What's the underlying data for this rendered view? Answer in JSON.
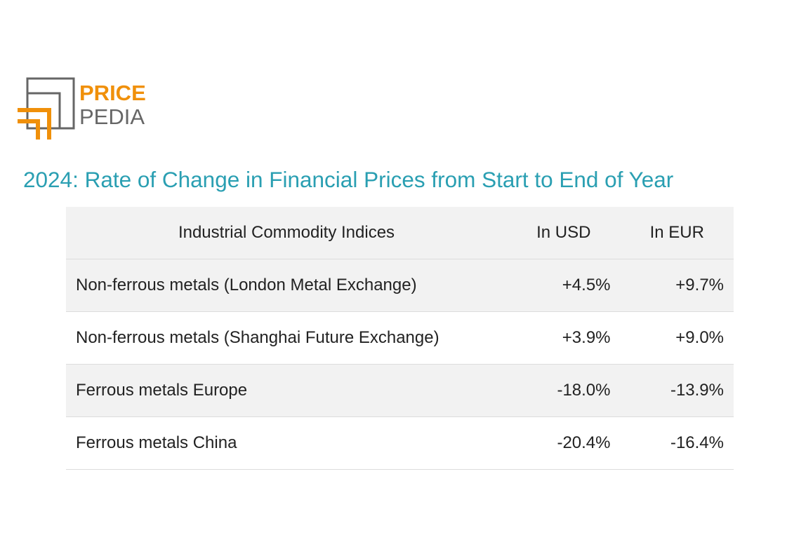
{
  "logo": {
    "line1": "PRICE",
    "line2": "PEDIA"
  },
  "title": "2024: Rate of Change in Financial Prices from Start to End of Year",
  "table": {
    "header": [
      "Industrial Commodity Indices",
      "In USD",
      "In EUR"
    ],
    "rows": [
      [
        "Non-ferrous metals (London Metal Exchange)",
        "+4.5%",
        "+9.7%"
      ],
      [
        "Non-ferrous metals (Shanghai Future Exchange)",
        "+3.9%",
        "+9.0%"
      ],
      [
        "Ferrous metals Europe",
        "-18.0%",
        "-13.9%"
      ],
      [
        "Ferrous metals China",
        "-20.4%",
        "-16.4%"
      ]
    ]
  }
}
